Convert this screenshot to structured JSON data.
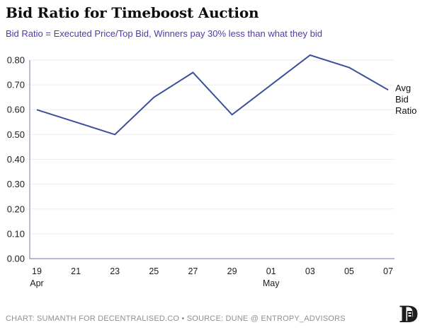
{
  "title": "Bid Ratio for Timeboost Auction",
  "subtitle": "Bid Ratio = Executed Price/Top Bid, Winners pay 30% less than what they bid",
  "annotation": "Avg Bid Ratio",
  "footer": {
    "credit": "CHART: SUMANTH FOR DECENTRALISED.CO • SOURCE: DUNE @ ENTROPY_ADVISORS",
    "logo_glyph": "D"
  },
  "colors": {
    "line": "#3d4f9c",
    "subtitle": "#5835ae",
    "axis": "#a89bc7",
    "grid": "#ebebee",
    "tick_text": "#1c1c1c",
    "footer_text": "#8f8f8f"
  },
  "chart_data": {
    "type": "line",
    "x": [
      "19 Apr",
      "21 Apr",
      "23 Apr",
      "25 Apr",
      "27 Apr",
      "29 Apr",
      "01 May",
      "03 May",
      "05 May",
      "07 May"
    ],
    "x_tick_labels": [
      "19",
      "21",
      "23",
      "25",
      "27",
      "29",
      "01",
      "03",
      "05",
      "07"
    ],
    "x_month_labels": [
      {
        "index": 0,
        "label": "Apr"
      },
      {
        "index": 6,
        "label": "May"
      }
    ],
    "series": [
      {
        "name": "Avg Bid Ratio",
        "values": [
          0.6,
          0.55,
          0.5,
          0.65,
          0.75,
          0.58,
          0.7,
          0.82,
          0.77,
          0.68
        ]
      }
    ],
    "title": "Bid Ratio for Timeboost Auction",
    "xlabel": "",
    "ylabel": "",
    "ylim": [
      0.0,
      0.8
    ],
    "ytick_step": 0.1,
    "y_tick_labels": [
      "0.00",
      "0.10",
      "0.20",
      "0.30",
      "0.40",
      "0.50",
      "0.60",
      "0.70",
      "0.80"
    ],
    "grid": "horizontal",
    "legend_position": "right-of-line-end"
  }
}
